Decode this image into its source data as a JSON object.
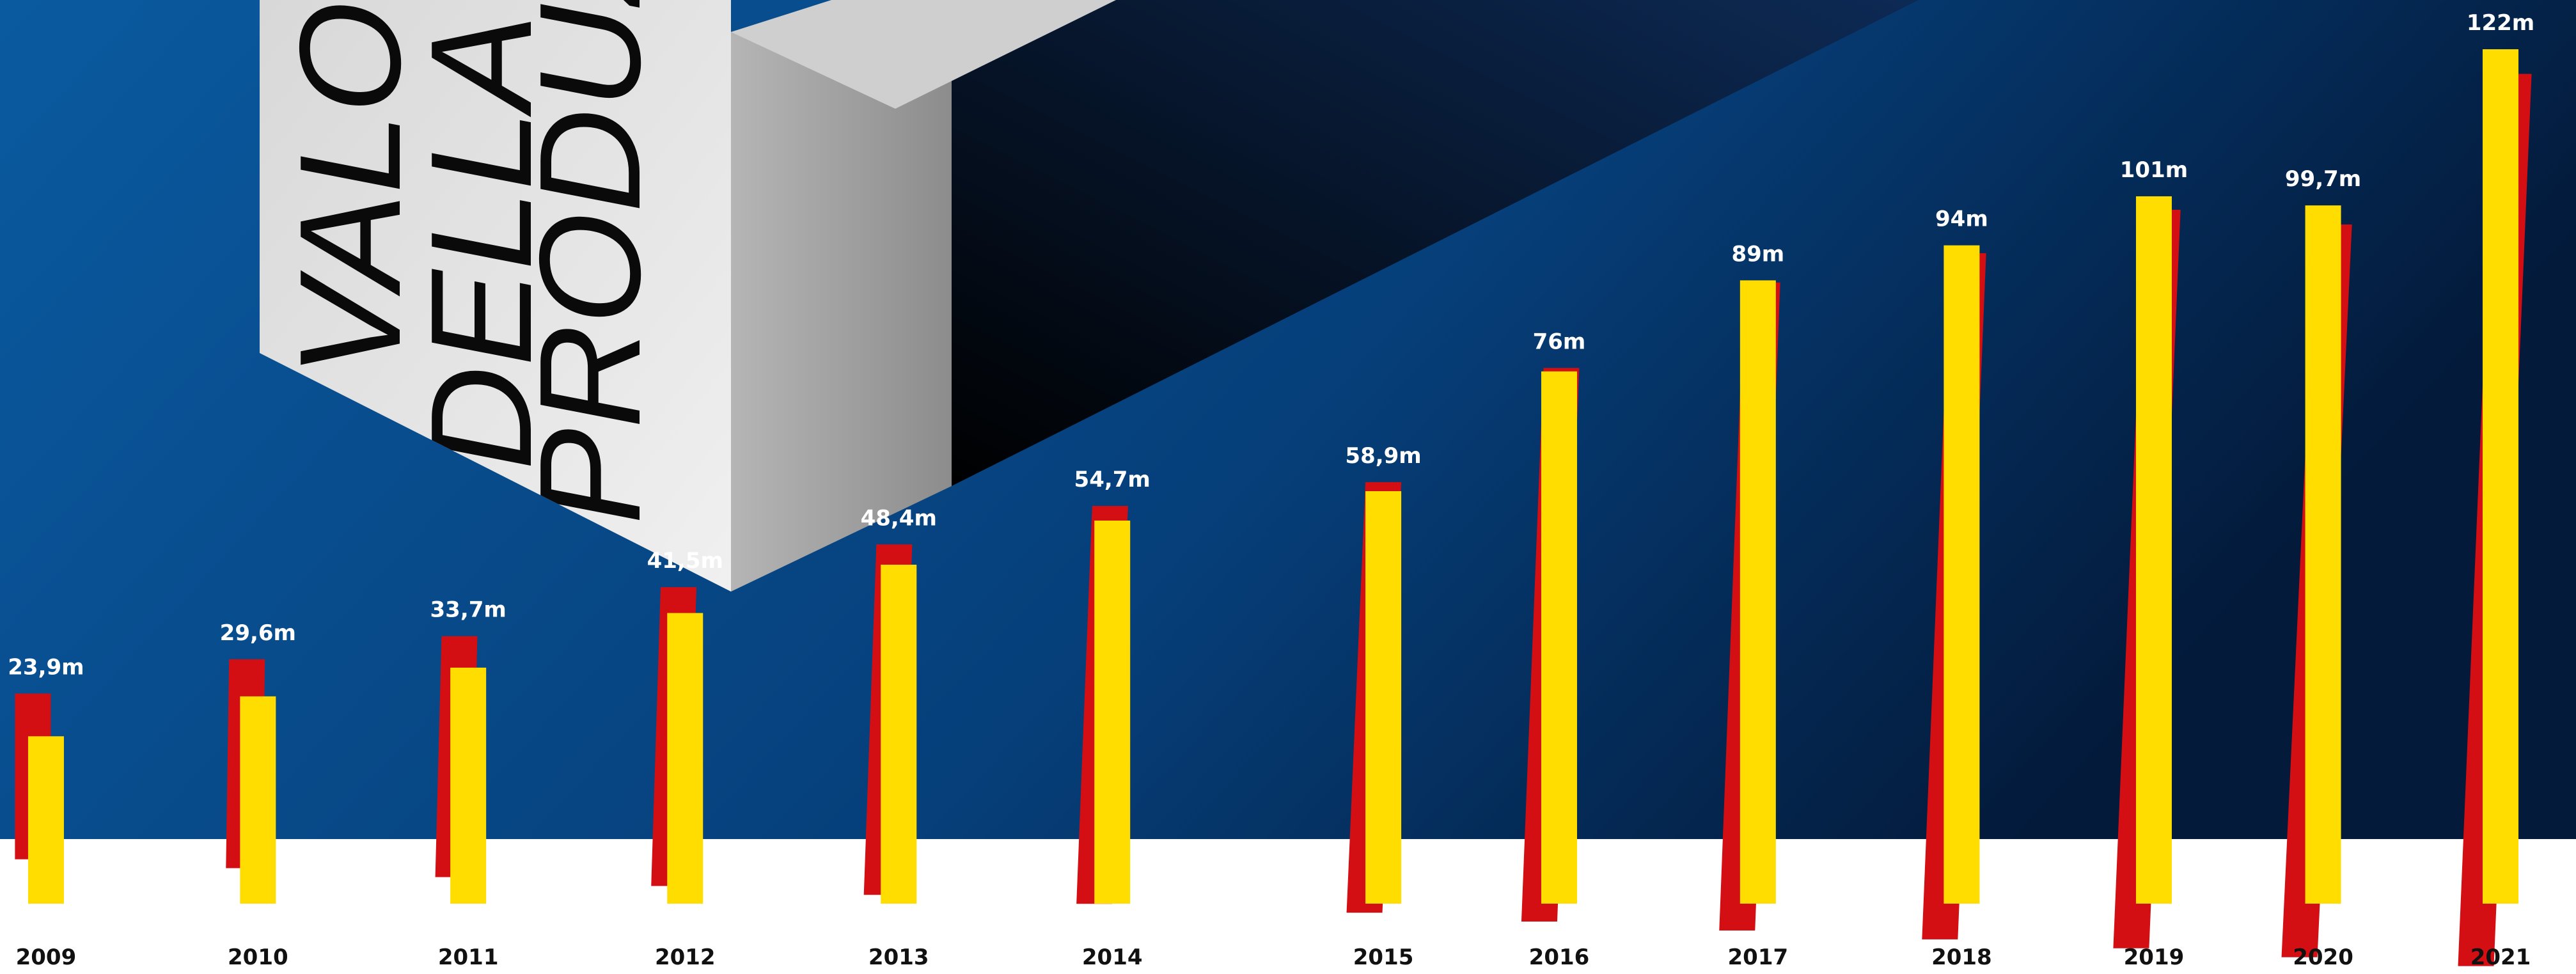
{
  "chart_data": {
    "type": "bar",
    "title_lines": [
      "VALORE",
      "DELLA",
      "PRODUZIONE"
    ],
    "categories": [
      "2009",
      "2010",
      "2011",
      "2012",
      "2013",
      "2014",
      "2015",
      "2016",
      "2017",
      "2018",
      "2019",
      "2020",
      "2021"
    ],
    "values": [
      23.9,
      29.6,
      33.7,
      41.5,
      48.4,
      54.7,
      58.9,
      76,
      89,
      94,
      101,
      99.7,
      122
    ],
    "value_labels": [
      "23,9m",
      "29,6m",
      "33,7m",
      "41,5m",
      "48,4m",
      "54,7m",
      "58,9m",
      "76m",
      "89m",
      "94m",
      "101m",
      "99,7m",
      "122m"
    ],
    "color": "#ffdd00",
    "shadow_color": "#d40f14"
  }
}
